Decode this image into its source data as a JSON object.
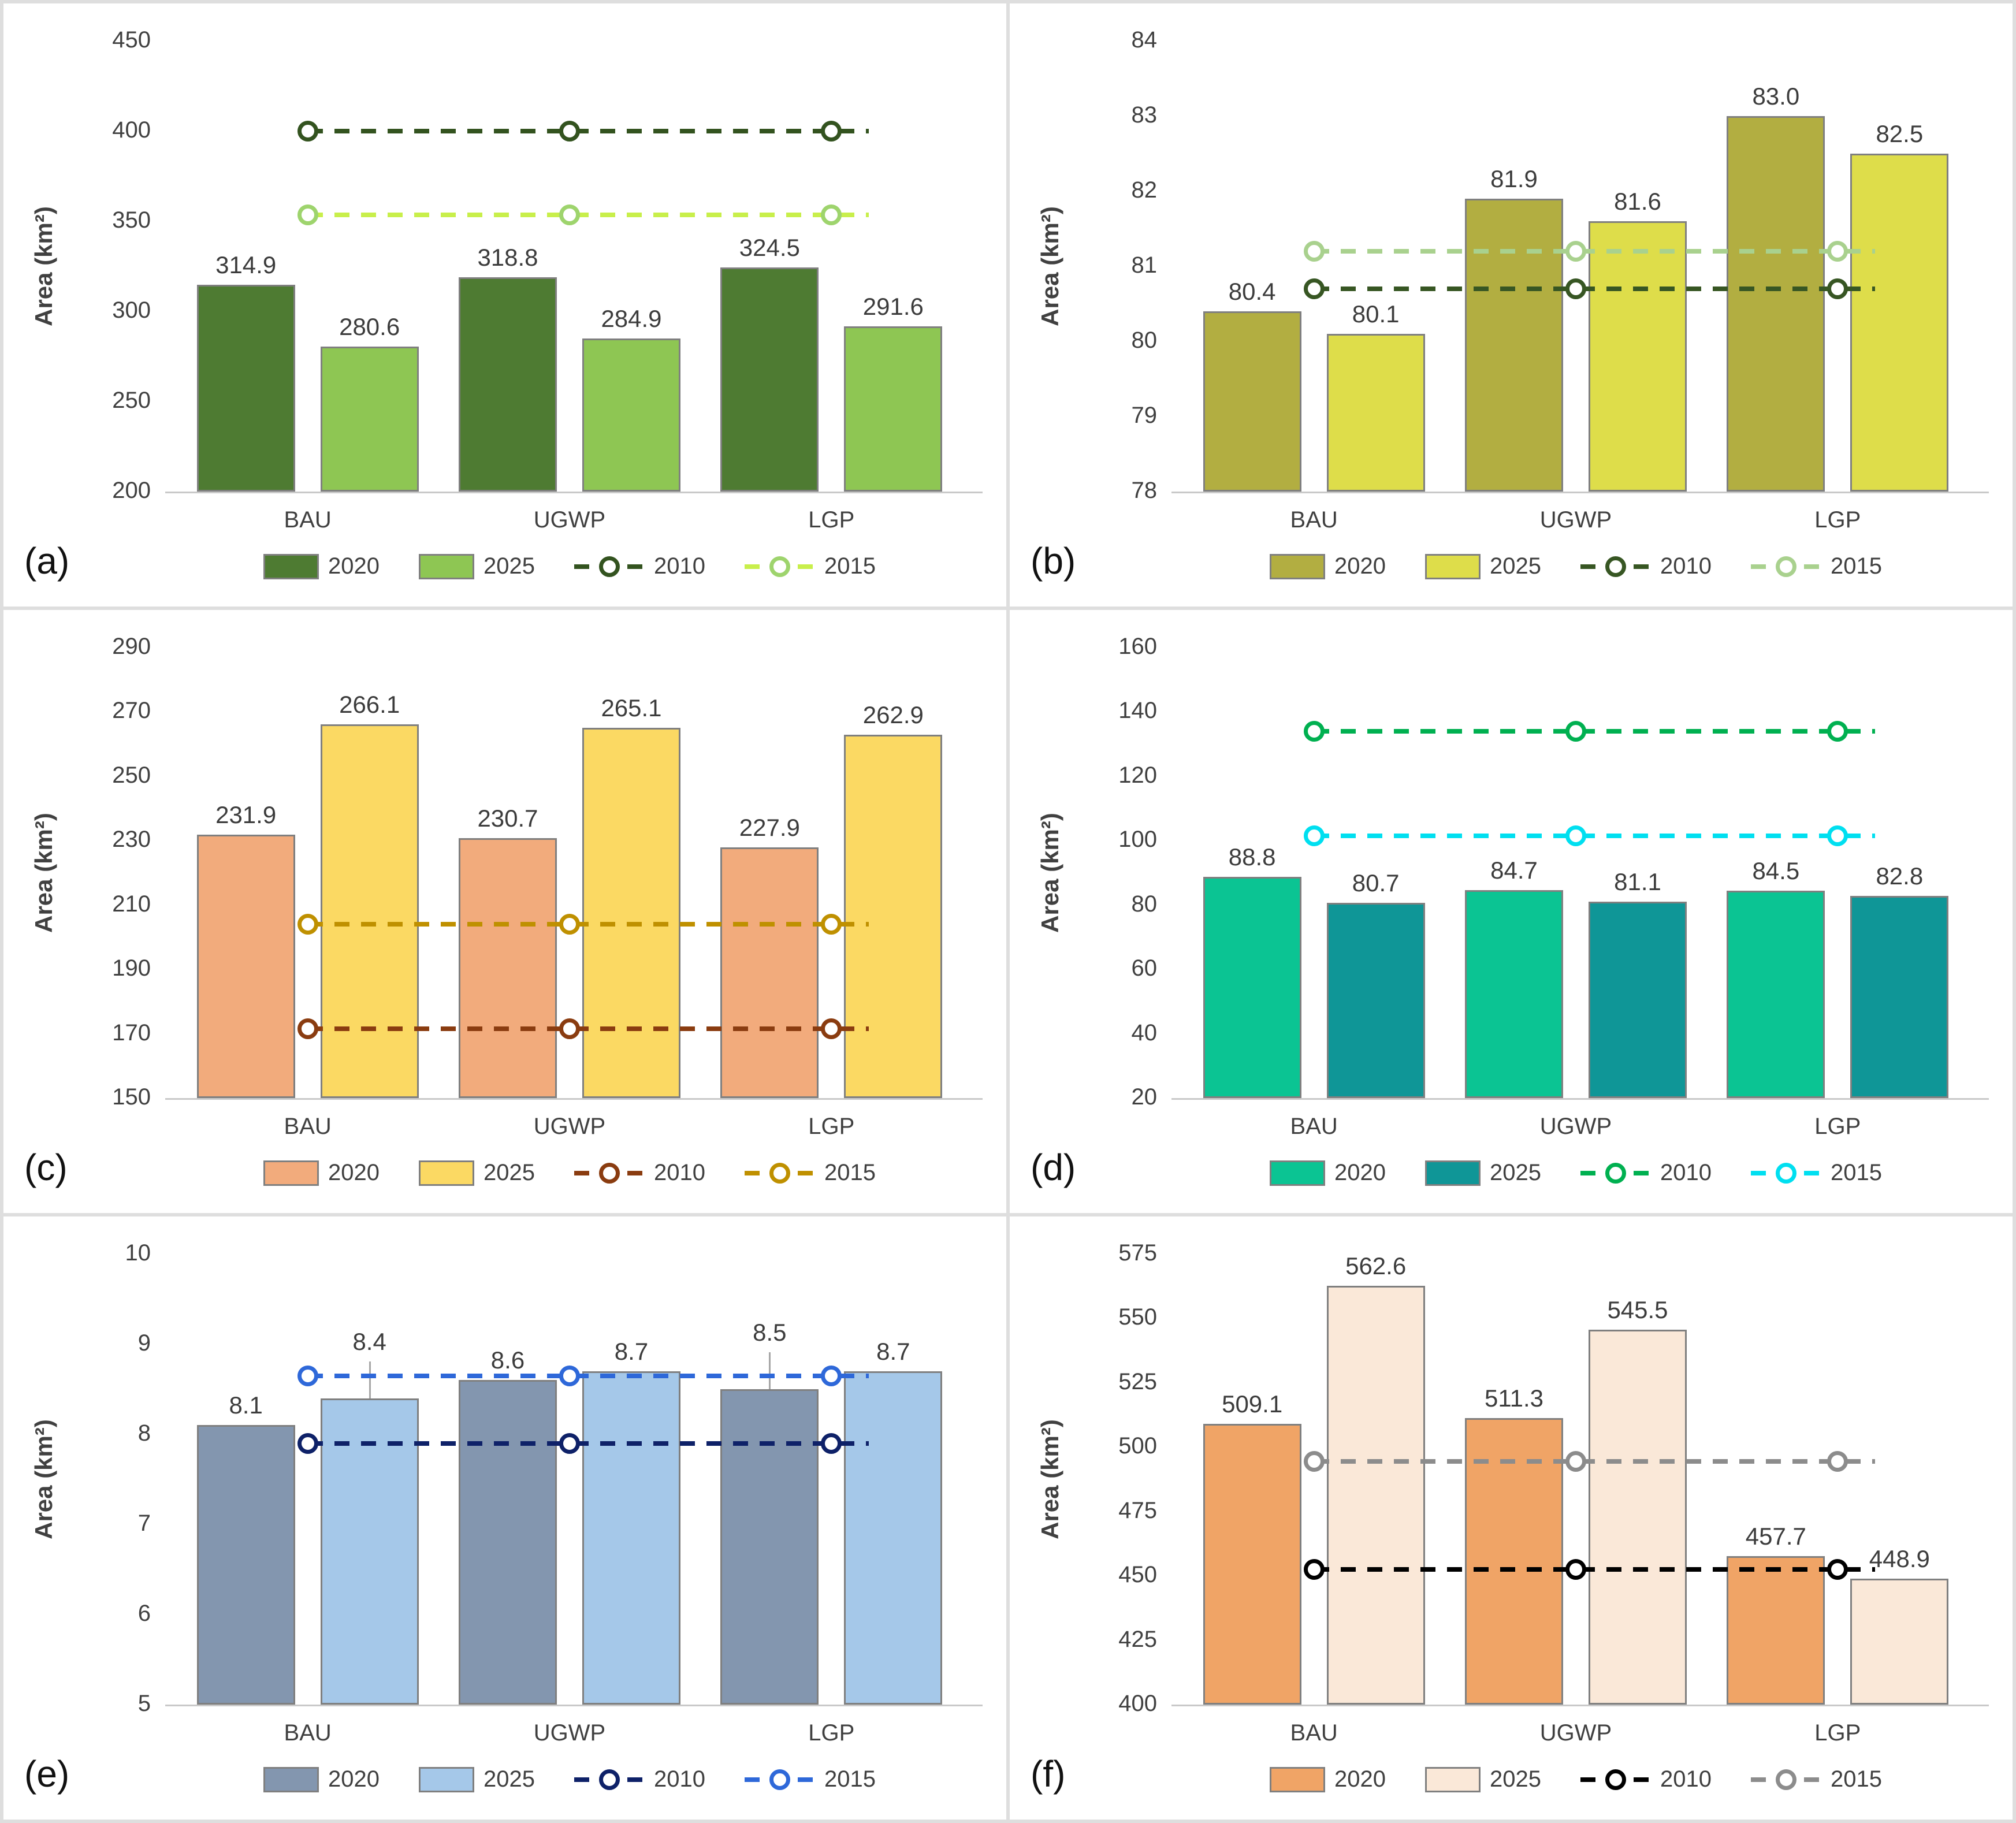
{
  "figure": {
    "ylabel": "Area (km²)",
    "categories": [
      "BAU",
      "UGWP",
      "LGP"
    ],
    "legend_labels": [
      "2020",
      "2025",
      "2010",
      "2015"
    ]
  },
  "chart_data": [
    {
      "id": "a",
      "label": "(a)",
      "type": "bar",
      "title": "",
      "xlabel": "",
      "ylabel": "Area (km²)",
      "categories": [
        "BAU",
        "UGWP",
        "LGP"
      ],
      "ylim": [
        200,
        450
      ],
      "ytick_step": 50,
      "grid": false,
      "legend_position": "bottom",
      "series": [
        {
          "name": "2020",
          "color": "#4e7b32",
          "values": [
            "314.9",
            "318.8",
            "324.5"
          ]
        },
        {
          "name": "2025",
          "color": "#8ec653",
          "values": [
            "280.6",
            "284.9",
            "291.6"
          ]
        }
      ],
      "ref_lines": [
        {
          "name": "2010",
          "value": 400,
          "color": "#33531f"
        },
        {
          "name": "2015",
          "value": 353.5,
          "color": "#c8ef4b",
          "marker_color": "#9ed46d"
        }
      ],
      "label_leaders": []
    },
    {
      "id": "b",
      "label": "(b)",
      "type": "bar",
      "title": "",
      "xlabel": "",
      "ylabel": "Area (km²)",
      "categories": [
        "BAU",
        "UGWP",
        "LGP"
      ],
      "ylim": [
        78,
        84
      ],
      "ytick_step": 1,
      "grid": false,
      "legend_position": "bottom",
      "series": [
        {
          "name": "2020",
          "color": "#b2ae41",
          "values": [
            "80.4",
            "81.9",
            "83.0"
          ]
        },
        {
          "name": "2025",
          "color": "#dedd4a",
          "values": [
            "80.1",
            "81.6",
            "82.5"
          ]
        }
      ],
      "ref_lines": [
        {
          "name": "2010",
          "value": 80.7,
          "color": "#375623"
        },
        {
          "name": "2015",
          "value": 81.2,
          "color": "#a9d18e"
        }
      ],
      "label_leaders": []
    },
    {
      "id": "c",
      "label": "(c)",
      "type": "bar",
      "title": "",
      "xlabel": "",
      "ylabel": "Area (km²)",
      "categories": [
        "BAU",
        "UGWP",
        "LGP"
      ],
      "ylim": [
        150,
        290
      ],
      "ytick_step": 20,
      "grid": false,
      "legend_position": "bottom",
      "series": [
        {
          "name": "2020",
          "color": "#f2ab7c",
          "values": [
            "231.9",
            "230.7",
            "227.9"
          ]
        },
        {
          "name": "2025",
          "color": "#fbd963",
          "values": [
            "266.1",
            "265.1",
            "262.9"
          ]
        }
      ],
      "ref_lines": [
        {
          "name": "2010",
          "value": 171.5,
          "color": "#8a3c10"
        },
        {
          "name": "2015",
          "value": 204,
          "color": "#bf9000"
        }
      ],
      "label_leaders": []
    },
    {
      "id": "d",
      "label": "(d)",
      "type": "bar",
      "title": "",
      "xlabel": "",
      "ylabel": "Area (km²)",
      "categories": [
        "BAU",
        "UGWP",
        "LGP"
      ],
      "ylim": [
        20,
        160
      ],
      "ytick_step": 20,
      "grid": false,
      "legend_position": "bottom",
      "series": [
        {
          "name": "2020",
          "color": "#0bc493",
          "values": [
            "88.8",
            "84.7",
            "84.5"
          ]
        },
        {
          "name": "2025",
          "color": "#0f9697",
          "values": [
            "80.7",
            "81.1",
            "82.8"
          ]
        }
      ],
      "ref_lines": [
        {
          "name": "2010",
          "value": 134,
          "color": "#00b050"
        },
        {
          "name": "2015",
          "value": 101.5,
          "color": "#00dff0"
        }
      ],
      "label_leaders": []
    },
    {
      "id": "e",
      "label": "(e)",
      "type": "bar",
      "title": "",
      "xlabel": "",
      "ylabel": "Area (km²)",
      "categories": [
        "BAU",
        "UGWP",
        "LGP"
      ],
      "ylim": [
        5,
        10
      ],
      "ytick_step": 1,
      "grid": false,
      "legend_position": "bottom",
      "series": [
        {
          "name": "2020",
          "color": "#8396af",
          "values": [
            "8.1",
            "8.6",
            "8.5"
          ]
        },
        {
          "name": "2025",
          "color": "#a5c8e9",
          "values": [
            "8.4",
            "8.7",
            "8.7"
          ]
        }
      ],
      "ref_lines": [
        {
          "name": "2010",
          "value": 7.9,
          "color": "#0e2168"
        },
        {
          "name": "2015",
          "value": 8.65,
          "color": "#2e68d9"
        }
      ],
      "label_leaders": [
        [
          0,
          1
        ],
        [
          2,
          0
        ]
      ]
    },
    {
      "id": "f",
      "label": "(f)",
      "type": "bar",
      "title": "",
      "xlabel": "",
      "ylabel": "Area (km²)",
      "categories": [
        "BAU",
        "UGWP",
        "LGP"
      ],
      "ylim": [
        400,
        575
      ],
      "ytick_step": 25,
      "grid": false,
      "legend_position": "bottom",
      "series": [
        {
          "name": "2020",
          "color": "#f0a466",
          "values": [
            "509.1",
            "511.3",
            "457.7"
          ]
        },
        {
          "name": "2025",
          "color": "#fae8d8",
          "values": [
            "562.6",
            "545.5",
            "448.9"
          ]
        }
      ],
      "ref_lines": [
        {
          "name": "2010",
          "value": 452.5,
          "color": "#000000"
        },
        {
          "name": "2015",
          "value": 494.5,
          "color": "#8c8c8c"
        }
      ],
      "label_leaders": []
    }
  ]
}
